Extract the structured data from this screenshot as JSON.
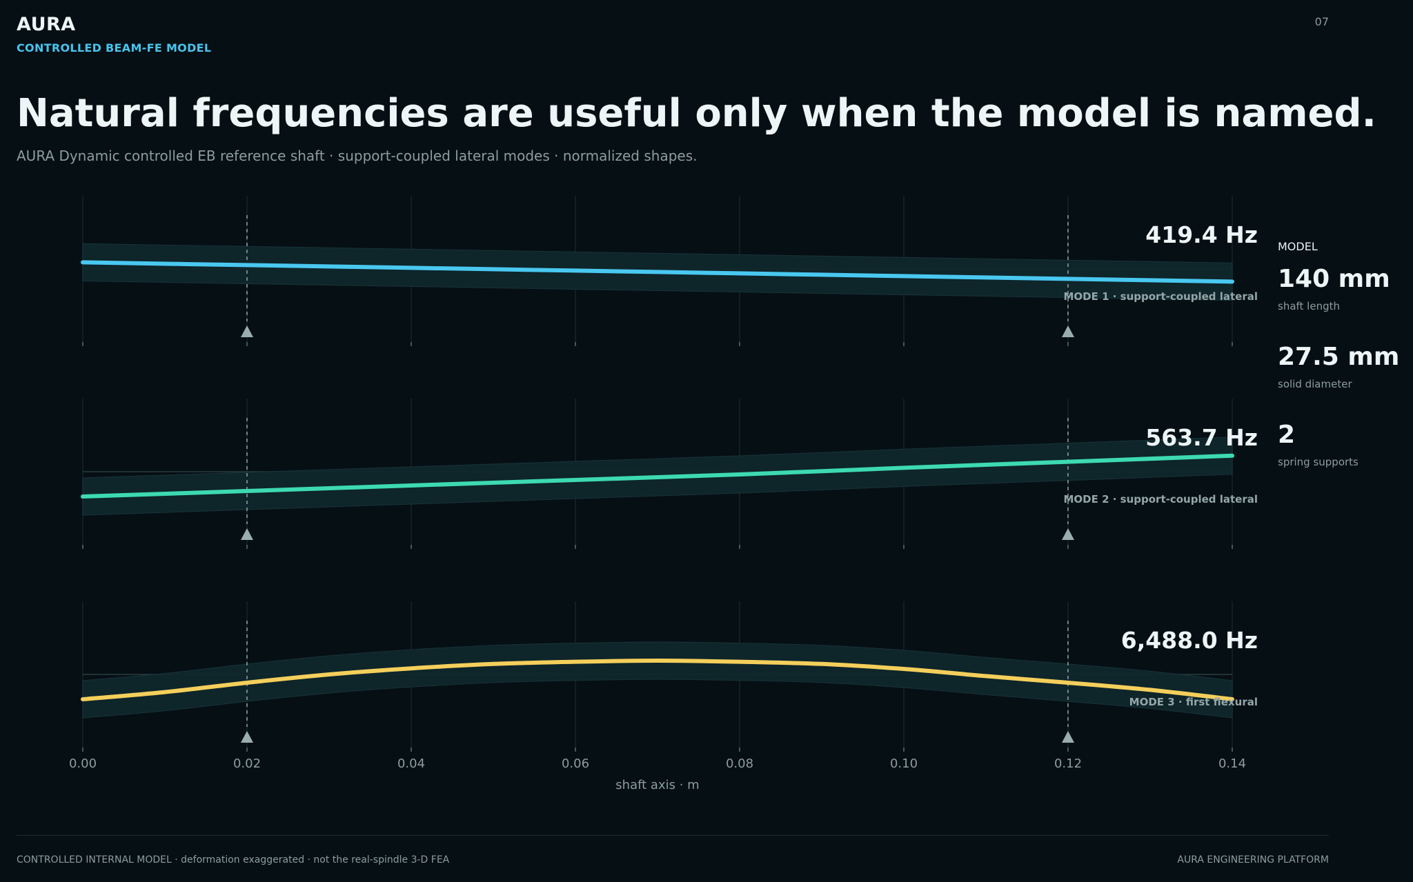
{
  "header": {
    "brand": "AURA",
    "subbrand": "CONTROLLED BEAM-FE MODEL",
    "page_number": "07",
    "headline": "Natural frequencies are useful only when the model is named.",
    "subtitle": "AURA Dynamic controlled EB reference shaft · support-coupled lateral modes · normalized shapes."
  },
  "sidebar": {
    "label": "MODEL",
    "stats": [
      {
        "value": "140 mm",
        "desc": "shaft length"
      },
      {
        "value": "27.5 mm",
        "desc": "solid diameter"
      },
      {
        "value": "2",
        "desc": "spring supports"
      }
    ]
  },
  "footer": {
    "left": "CONTROLLED INTERNAL MODEL · deformation exaggerated · not the real-spindle 3-D FEA",
    "right": "AURA ENGINEERING PLATFORM"
  },
  "chart_data": {
    "type": "line",
    "xlabel": "shaft axis · m",
    "xlim": [
      0,
      0.14
    ],
    "xticks": [
      "0.00",
      "0.02",
      "0.04",
      "0.06",
      "0.08",
      "0.10",
      "0.12",
      "0.14"
    ],
    "supports_x": [
      0.02,
      0.12
    ],
    "series": [
      {
        "name": "MODE 1 · support-coupled lateral",
        "frequency": "419.4 Hz",
        "color": "#49c8f0",
        "x": [
          0,
          0.02,
          0.04,
          0.06,
          0.08,
          0.1,
          0.12,
          0.14
        ],
        "y": [
          0.12,
          0.07,
          0.02,
          -0.03,
          -0.08,
          -0.13,
          -0.18,
          -0.23
        ]
      },
      {
        "name": "MODE 2 · support-coupled lateral",
        "frequency": "563.7 Hz",
        "color": "#3ddab0",
        "x": [
          0,
          0.02,
          0.04,
          0.06,
          0.08,
          0.1,
          0.12,
          0.14
        ],
        "y": [
          -0.45,
          -0.35,
          -0.25,
          -0.15,
          -0.05,
          0.07,
          0.18,
          0.29
        ]
      },
      {
        "name": "MODE 3 · first flexural",
        "frequency": "6,488.0 Hz",
        "color": "#f4cf5b",
        "x": [
          0,
          0.01,
          0.02,
          0.03,
          0.04,
          0.05,
          0.06,
          0.07,
          0.08,
          0.09,
          0.1,
          0.11,
          0.12,
          0.13,
          0.14
        ],
        "y": [
          -0.45,
          -0.32,
          -0.15,
          0.0,
          0.11,
          0.19,
          0.23,
          0.25,
          0.23,
          0.19,
          0.1,
          -0.03,
          -0.15,
          -0.28,
          -0.45
        ]
      }
    ]
  }
}
